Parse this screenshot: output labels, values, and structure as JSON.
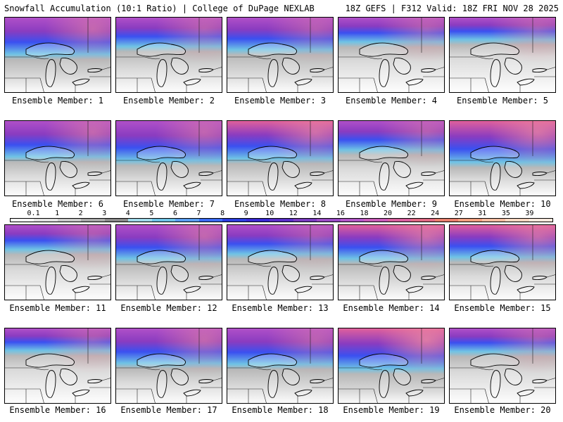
{
  "header": {
    "title_left": "Snowfall Accumulation (10:1 Ratio) | College of DuPage NEXLAB",
    "title_right": "18Z GEFS | F312 Valid: 18Z FRI NOV 28 2025"
  },
  "legend": {
    "levels": [
      "0.1",
      "1",
      "2",
      "3",
      "4",
      "5",
      "6",
      "7",
      "8",
      "9",
      "10",
      "12",
      "14",
      "16",
      "18",
      "20",
      "22",
      "24",
      "27",
      "31",
      "35",
      "39"
    ],
    "colors": [
      "#f2f2f2",
      "#e0e0e0",
      "#c8c8c8",
      "#a8a8a8",
      "#8a8a8a",
      "#9ed8e8",
      "#6fc3e5",
      "#5a9ef0",
      "#3b6cf5",
      "#2d3fe0",
      "#3a2ad4",
      "#5a2fc8",
      "#7a3cc0",
      "#9a4cc4",
      "#b358c8",
      "#c85bb8",
      "#d8609e",
      "#e06a84",
      "#e8806e",
      "#f0a080",
      "#f4bca0",
      "#f8d6c0",
      "#fde8dc"
    ]
  },
  "panels": [
    {
      "label": "Ensemble Member: 1",
      "snow": 0.72,
      "gray": 0.45,
      "hot": 0.6
    },
    {
      "label": "Ensemble Member: 2",
      "snow": 0.55,
      "gray": 0.45,
      "hot": 0.5
    },
    {
      "label": "Ensemble Member: 3",
      "snow": 0.62,
      "gray": 0.5,
      "hot": 0.45
    },
    {
      "label": "Ensemble Member: 4",
      "snow": 0.45,
      "gray": 0.35,
      "hot": 0.5
    },
    {
      "label": "Ensemble Member: 5",
      "snow": 0.4,
      "gray": 0.3,
      "hot": 0.5
    },
    {
      "label": "Ensemble Member: 6",
      "snow": 0.7,
      "gray": 0.35,
      "hot": 0.6
    },
    {
      "label": "Ensemble Member: 7",
      "snow": 0.78,
      "gray": 0.35,
      "hot": 0.55
    },
    {
      "label": "Ensemble Member: 8",
      "snow": 0.74,
      "gray": 0.4,
      "hot": 0.7
    },
    {
      "label": "Ensemble Member: 9",
      "snow": 0.55,
      "gray": 0.35,
      "hot": 0.5
    },
    {
      "label": "Ensemble Member: 10",
      "snow": 0.82,
      "gray": 0.3,
      "hot": 0.75
    },
    {
      "label": "Ensemble Member: 11",
      "snow": 0.45,
      "gray": 0.4,
      "hot": 0.45
    },
    {
      "label": "Ensemble Member: 12",
      "snow": 0.65,
      "gray": 0.45,
      "hot": 0.6
    },
    {
      "label": "Ensemble Member: 13",
      "snow": 0.55,
      "gray": 0.45,
      "hot": 0.4
    },
    {
      "label": "Ensemble Member: 14",
      "snow": 0.65,
      "gray": 0.45,
      "hot": 0.7
    },
    {
      "label": "Ensemble Member: 15",
      "snow": 0.62,
      "gray": 0.35,
      "hot": 0.65
    },
    {
      "label": "Ensemble Member: 16",
      "snow": 0.4,
      "gray": 0.35,
      "hot": 0.45
    },
    {
      "label": "Ensemble Member: 17",
      "snow": 0.68,
      "gray": 0.35,
      "hot": 0.6
    },
    {
      "label": "Ensemble Member: 18",
      "snow": 0.7,
      "gray": 0.45,
      "hot": 0.5
    },
    {
      "label": "Ensemble Member: 19",
      "snow": 0.8,
      "gray": 0.45,
      "hot": 0.85
    },
    {
      "label": "Ensemble Member: 20",
      "snow": 0.42,
      "gray": 0.4,
      "hot": 0.45
    }
  ]
}
